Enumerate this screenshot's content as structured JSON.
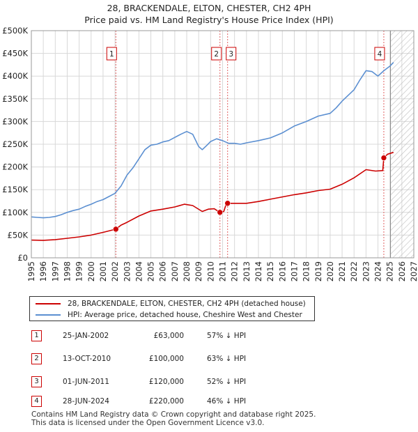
{
  "chart_data": {
    "type": "line",
    "title": "28, BRACKENDALE, ELTON, CHESTER, CH2 4PH",
    "subtitle": "Price paid vs. HM Land Registry's House Price Index (HPI)",
    "xlim": [
      1995,
      2027
    ],
    "ylim": [
      0,
      500000
    ],
    "x_tick_labels": [
      "1995",
      "1996",
      "1997",
      "1998",
      "1999",
      "2000",
      "2001",
      "2002",
      "2003",
      "2004",
      "2005",
      "2006",
      "2007",
      "2008",
      "2009",
      "2010",
      "2011",
      "2012",
      "2013",
      "2014",
      "2015",
      "2016",
      "2017",
      "2018",
      "2019",
      "2020",
      "2021",
      "2022",
      "2023",
      "2024",
      "2025",
      "2026",
      "2027"
    ],
    "y_tick_labels": [
      "£0",
      "£50K",
      "£100K",
      "£150K",
      "£200K",
      "£250K",
      "£300K",
      "£350K",
      "£400K",
      "£450K",
      "£500K"
    ],
    "grid": true,
    "forecast_start": 2025.05,
    "series": [
      {
        "name": "28, BRACKENDALE, ELTON, CHESTER, CH2 4PH (detached house)",
        "color": "#cc0000",
        "points": [
          [
            1995,
            39000
          ],
          [
            1996,
            38500
          ],
          [
            1997,
            40000
          ],
          [
            1998,
            43000
          ],
          [
            1999,
            46000
          ],
          [
            2000,
            50000
          ],
          [
            2001,
            56000
          ],
          [
            2002.07,
            63000
          ],
          [
            2002.5,
            72000
          ],
          [
            2003,
            78000
          ],
          [
            2004,
            92000
          ],
          [
            2005,
            103000
          ],
          [
            2006,
            107000
          ],
          [
            2007,
            112000
          ],
          [
            2007.8,
            118000
          ],
          [
            2008.5,
            115000
          ],
          [
            2009.3,
            102000
          ],
          [
            2009.8,
            107000
          ],
          [
            2010.3,
            108000
          ],
          [
            2010.78,
            100000
          ],
          [
            2011.1,
            102000
          ],
          [
            2011.3,
            118000
          ],
          [
            2011.42,
            120000
          ],
          [
            2012,
            120000
          ],
          [
            2013,
            120000
          ],
          [
            2014,
            124000
          ],
          [
            2015,
            129000
          ],
          [
            2016,
            134000
          ],
          [
            2017,
            139000
          ],
          [
            2018,
            143000
          ],
          [
            2019,
            148000
          ],
          [
            2020,
            151000
          ],
          [
            2021,
            162000
          ],
          [
            2022,
            176000
          ],
          [
            2023,
            194000
          ],
          [
            2023.8,
            191000
          ],
          [
            2024.4,
            192000
          ],
          [
            2024.49,
            220000
          ],
          [
            2024.8,
            228000
          ],
          [
            2025.3,
            232000
          ]
        ]
      },
      {
        "name": "HPI: Average price, detached house, Cheshire West and Chester",
        "color": "#5b8fd1",
        "points": [
          [
            1995,
            90000
          ],
          [
            1995.5,
            89000
          ],
          [
            1996,
            88000
          ],
          [
            1996.5,
            89000
          ],
          [
            1997,
            91000
          ],
          [
            1997.5,
            95000
          ],
          [
            1998,
            100000
          ],
          [
            1998.5,
            104000
          ],
          [
            1999,
            107000
          ],
          [
            1999.5,
            113000
          ],
          [
            2000,
            118000
          ],
          [
            2000.5,
            124000
          ],
          [
            2001,
            128000
          ],
          [
            2001.5,
            135000
          ],
          [
            2002,
            142000
          ],
          [
            2002.5,
            158000
          ],
          [
            2003,
            182000
          ],
          [
            2003.5,
            198000
          ],
          [
            2004,
            218000
          ],
          [
            2004.5,
            238000
          ],
          [
            2005,
            248000
          ],
          [
            2005.5,
            250000
          ],
          [
            2006,
            255000
          ],
          [
            2006.5,
            258000
          ],
          [
            2007,
            265000
          ],
          [
            2007.5,
            272000
          ],
          [
            2008,
            278000
          ],
          [
            2008.5,
            272000
          ],
          [
            2009,
            245000
          ],
          [
            2009.3,
            238000
          ],
          [
            2009.7,
            248000
          ],
          [
            2010,
            256000
          ],
          [
            2010.5,
            262000
          ],
          [
            2011,
            258000
          ],
          [
            2011.5,
            252000
          ],
          [
            2012,
            252000
          ],
          [
            2012.5,
            250000
          ],
          [
            2013,
            253000
          ],
          [
            2014,
            258000
          ],
          [
            2015,
            264000
          ],
          [
            2016,
            275000
          ],
          [
            2017,
            290000
          ],
          [
            2018,
            300000
          ],
          [
            2019,
            312000
          ],
          [
            2020,
            318000
          ],
          [
            2020.5,
            330000
          ],
          [
            2021,
            345000
          ],
          [
            2022,
            370000
          ],
          [
            2022.5,
            392000
          ],
          [
            2023,
            412000
          ],
          [
            2023.5,
            410000
          ],
          [
            2024,
            400000
          ],
          [
            2024.5,
            412000
          ],
          [
            2025,
            422000
          ],
          [
            2025.3,
            430000
          ]
        ]
      }
    ],
    "sales": [
      {
        "label": "1",
        "x": 2002.07,
        "price": 63000
      },
      {
        "label": "2",
        "x": 2010.78,
        "price": 100000
      },
      {
        "label": "3",
        "x": 2011.42,
        "price": 120000
      },
      {
        "label": "4",
        "x": 2024.49,
        "price": 220000
      }
    ]
  },
  "title": {
    "line1": "28, BRACKENDALE, ELTON, CHESTER, CH2 4PH",
    "line2": "Price paid vs. HM Land Registry's House Price Index (HPI)"
  },
  "legend": {
    "property": "28, BRACKENDALE, ELTON, CHESTER, CH2 4PH (detached house)",
    "hpi": "HPI: Average price, detached house, Cheshire West and Chester"
  },
  "colors": {
    "property": "#cc0000",
    "hpi": "#5b8fd1",
    "grid": "#d8d8d8",
    "plot_bg": "#ffffff"
  },
  "transactions": [
    {
      "num": "1",
      "date": "25-JAN-2002",
      "price": "£63,000",
      "hpi": "57% ↓ HPI"
    },
    {
      "num": "2",
      "date": "13-OCT-2010",
      "price": "£100,000",
      "hpi": "63% ↓ HPI"
    },
    {
      "num": "3",
      "date": "01-JUN-2011",
      "price": "£120,000",
      "hpi": "52% ↓ HPI"
    },
    {
      "num": "4",
      "date": "28-JUN-2024",
      "price": "£220,000",
      "hpi": "46% ↓ HPI"
    }
  ],
  "footer": {
    "line1": "Contains HM Land Registry data © Crown copyright and database right 2025.",
    "line2": "This data is licensed under the Open Government Licence v3.0."
  }
}
